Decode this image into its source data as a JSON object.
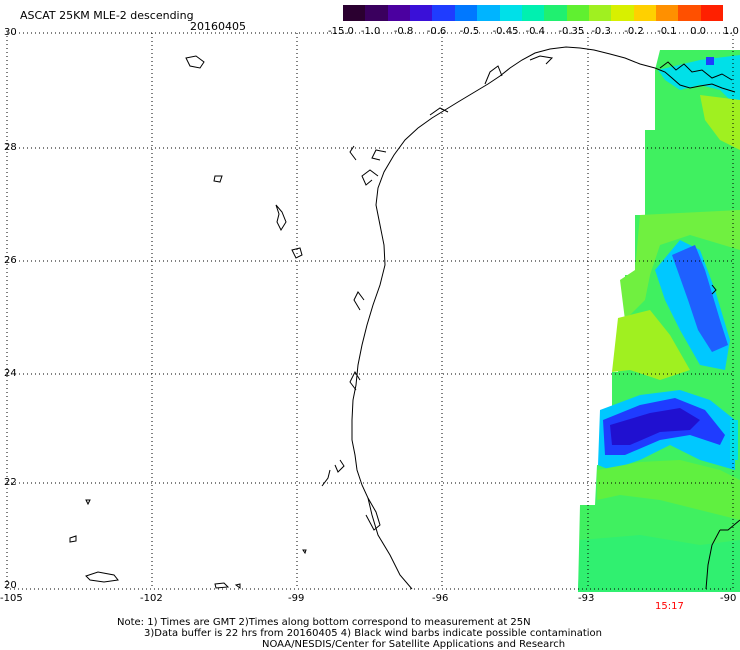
{
  "header": {
    "title": "ASCAT 25KM MLE-2 descending",
    "date": "20160405"
  },
  "colorbar": {
    "labels": [
      "-15.0",
      "-1.0",
      "-0.8",
      "-0.6",
      "-0.5",
      "-0.45",
      "-0.4",
      "-0.35",
      "-0.3",
      "-0.2",
      "-0.1",
      "0.0",
      "1.0"
    ],
    "colors": [
      "#2b0030",
      "#3a005e",
      "#4b00a0",
      "#3a10d8",
      "#1f3cff",
      "#0078ff",
      "#00b4ff",
      "#00e0e8",
      "#00f0b0",
      "#20f070",
      "#60f030",
      "#a0f020",
      "#d8f000",
      "#ffd000",
      "#ff9000",
      "#ff5000",
      "#ff2000"
    ]
  },
  "axes": {
    "y_ticks": [
      "30",
      "28",
      "26",
      "24",
      "22",
      "20"
    ],
    "x_ticks": [
      "-105",
      "-102",
      "-99",
      "-96",
      "-93",
      "-90"
    ]
  },
  "time_label": "15:17",
  "time_color": "#ff0000",
  "notes": {
    "line1": "Note: 1) Times are GMT 2)Times along bottom correspond to measurement at 25N",
    "line2": "3)Data buffer is 22 hrs from 20160405 4) Black wind barbs indicate possible contamination",
    "line3": "NOAA/NESDIS/Center for Satellite Applications and Research"
  }
}
